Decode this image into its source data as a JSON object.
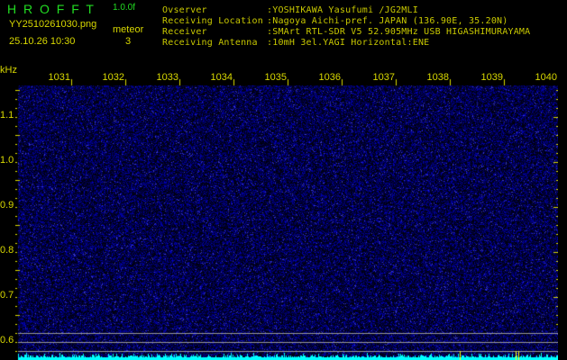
{
  "header": {
    "title": "H R O F F T",
    "version": "1.0.0f",
    "filename": "YY2510261030.png",
    "datetime": "25.10.26 10:30",
    "meteor_label": "meteor",
    "meteor_count": "3"
  },
  "info": [
    {
      "label": "Ovserver",
      "value": ":YOSHIKAWA Yasufumi /JG2MLI"
    },
    {
      "label": "Receiving Location",
      "value": ":Nagoya Aichi-pref. JAPAN (136.90E, 35.20N)"
    },
    {
      "label": "Receiver",
      "value": ":SMArt RTL-SDR V5 52.905MHz USB HIGASHIMURAYAMA"
    },
    {
      "label": "Receiving Antenna",
      "value": ":10mH 3el.YAGI Horizontal:ENE"
    }
  ],
  "axis": {
    "unit": "kHz",
    "freq_ticks": [
      "1031",
      "1032",
      "1033",
      "1034",
      "1035",
      "1036",
      "1037",
      "1038",
      "1039",
      "1040"
    ],
    "y_ticks": [
      "1.1",
      "1.0",
      "0.9",
      "0.8",
      "0.7",
      "0.6"
    ]
  },
  "colors": {
    "background": "#000000",
    "noise": "#1a1aa0",
    "spectrum": "#00ffff",
    "text": "#d8d800",
    "title": "#22dd22"
  }
}
